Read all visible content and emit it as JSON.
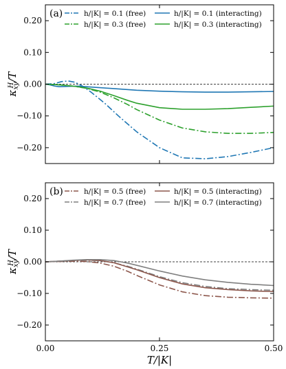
{
  "colors": {
    "blue": "#1f77b4",
    "green": "#2ca02c",
    "brown": "#8c564b",
    "gray": "#7f7f7f"
  },
  "chart_data": [
    {
      "type": "line",
      "panel_label": "(a)",
      "xlim": [
        0,
        0.5
      ],
      "ylim": [
        -0.25,
        0.25
      ],
      "xticks": [
        0,
        0.25,
        0.5
      ],
      "xtick_labels": [
        "",
        "",
        ""
      ],
      "yticks": [
        -0.2,
        -0.1,
        0.0,
        0.1,
        0.2
      ],
      "ytick_labels": [
        "−0.20",
        "−0.10",
        "0.00",
        "0.10",
        "0.20"
      ],
      "xlabel": "",
      "ylabel": "κxyH/T",
      "reference_line": {
        "y": 0,
        "style": "dashed"
      },
      "legend": {
        "location": "top",
        "columns": 2
      },
      "series": [
        {
          "name": "h/|K| = 0.1 (free)",
          "color": "#1f77b4",
          "style": "dashdot",
          "x": [
            0,
            0.02,
            0.035,
            0.05,
            0.065,
            0.08,
            0.1,
            0.13,
            0.16,
            0.2,
            0.25,
            0.3,
            0.35,
            0.4,
            0.45,
            0.5
          ],
          "y": [
            0,
            0.002,
            0.008,
            0.01,
            0.006,
            -0.005,
            -0.025,
            -0.06,
            -0.1,
            -0.15,
            -0.2,
            -0.232,
            -0.235,
            -0.228,
            -0.215,
            -0.2
          ]
        },
        {
          "name": "h/|K| = 0.3 (free)",
          "color": "#2ca02c",
          "style": "dashdot",
          "x": [
            0,
            0.03,
            0.06,
            0.09,
            0.12,
            0.15,
            0.18,
            0.2,
            0.25,
            0.3,
            0.35,
            0.4,
            0.45,
            0.5
          ],
          "y": [
            0,
            -0.002,
            -0.006,
            -0.013,
            -0.025,
            -0.043,
            -0.064,
            -0.08,
            -0.113,
            -0.138,
            -0.15,
            -0.155,
            -0.155,
            -0.152
          ]
        },
        {
          "name": "h/|K| = 0.1 (interacting)",
          "color": "#1f77b4",
          "style": "solid",
          "x": [
            0,
            0.01,
            0.02,
            0.03,
            0.05,
            0.07,
            0.1,
            0.15,
            0.2,
            0.25,
            0.3,
            0.35,
            0.4,
            0.45,
            0.5
          ],
          "y": [
            0,
            -0.002,
            -0.006,
            -0.008,
            -0.007,
            -0.006,
            -0.009,
            -0.014,
            -0.019,
            -0.022,
            -0.024,
            -0.025,
            -0.025,
            -0.024,
            -0.023
          ]
        },
        {
          "name": "h/|K| = 0.3 (interacting)",
          "color": "#2ca02c",
          "style": "solid",
          "x": [
            0,
            0.03,
            0.06,
            0.09,
            0.12,
            0.15,
            0.18,
            0.2,
            0.25,
            0.3,
            0.35,
            0.4,
            0.45,
            0.5
          ],
          "y": [
            0,
            -0.002,
            -0.006,
            -0.012,
            -0.022,
            -0.036,
            -0.051,
            -0.06,
            -0.074,
            -0.079,
            -0.079,
            -0.077,
            -0.073,
            -0.069
          ]
        }
      ]
    },
    {
      "type": "line",
      "panel_label": "(b)",
      "xlim": [
        0,
        0.5
      ],
      "ylim": [
        -0.25,
        0.25
      ],
      "xticks": [
        0,
        0.25,
        0.5
      ],
      "xtick_labels": [
        "0.00",
        "0.25",
        "0.50"
      ],
      "yticks": [
        -0.2,
        -0.1,
        0.0,
        0.1,
        0.2
      ],
      "ytick_labels": [
        "−0.20",
        "−0.10",
        "0.00",
        "0.10",
        "0.20"
      ],
      "xlabel": "T/|K|",
      "ylabel": "κxyH/T",
      "reference_line": {
        "y": 0,
        "style": "dashed"
      },
      "legend": {
        "location": "top",
        "columns": 2
      },
      "series": [
        {
          "name": "h/|K| = 0.5 (free)",
          "color": "#8c564b",
          "style": "dashdot",
          "x": [
            0,
            0.03,
            0.06,
            0.09,
            0.12,
            0.15,
            0.18,
            0.2,
            0.25,
            0.3,
            0.35,
            0.4,
            0.45,
            0.5
          ],
          "y": [
            0,
            0.001,
            0.002,
            0.001,
            -0.004,
            -0.014,
            -0.03,
            -0.043,
            -0.073,
            -0.095,
            -0.107,
            -0.112,
            -0.114,
            -0.115
          ]
        },
        {
          "name": "h/|K| = 0.7 (free)",
          "color": "#7f7f7f",
          "style": "dashdot",
          "x": [
            0,
            0.03,
            0.06,
            0.09,
            0.12,
            0.15,
            0.18,
            0.2,
            0.25,
            0.3,
            0.35,
            0.4,
            0.45,
            0.5
          ],
          "y": [
            0,
            0.002,
            0.004,
            0.005,
            0.004,
            -0.003,
            -0.014,
            -0.023,
            -0.047,
            -0.066,
            -0.078,
            -0.085,
            -0.088,
            -0.09
          ]
        },
        {
          "name": "h/|K| = 0.5 (interacting)",
          "color": "#8c564b",
          "style": "solid",
          "x": [
            0,
            0.03,
            0.06,
            0.09,
            0.12,
            0.15,
            0.18,
            0.2,
            0.25,
            0.3,
            0.35,
            0.4,
            0.45,
            0.5
          ],
          "y": [
            0,
            0.002,
            0.004,
            0.006,
            0.004,
            -0.003,
            -0.016,
            -0.025,
            -0.05,
            -0.07,
            -0.082,
            -0.088,
            -0.092,
            -0.094
          ]
        },
        {
          "name": "h/|K| = 0.7 (interacting)",
          "color": "#7f7f7f",
          "style": "solid",
          "x": [
            0,
            0.03,
            0.06,
            0.09,
            0.12,
            0.15,
            0.18,
            0.2,
            0.25,
            0.3,
            0.35,
            0.4,
            0.45,
            0.5
          ],
          "y": [
            0,
            0.002,
            0.005,
            0.007,
            0.007,
            0.004,
            -0.004,
            -0.011,
            -0.029,
            -0.045,
            -0.057,
            -0.065,
            -0.071,
            -0.075
          ]
        }
      ]
    }
  ]
}
